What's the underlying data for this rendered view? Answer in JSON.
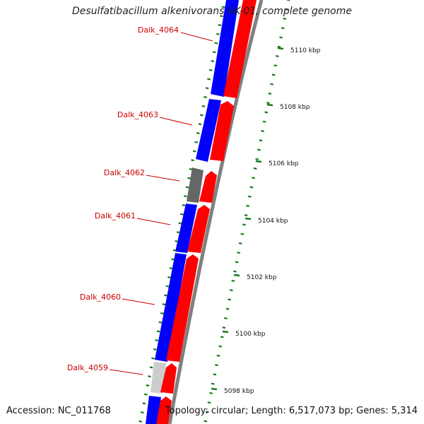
{
  "title": "Desulfatibacillum alkenivorans AK-01, complete genome",
  "accession": "Accession: NC_011768",
  "topology": "Topology: circular; Length: 6,517,073 bp; Genes: 5,314",
  "colors": {
    "forward_cds": "#ff0000",
    "reverse_cds": "#0000ff",
    "gray_feature": "#666666",
    "light_feature": "#cccccc",
    "backbone": "#808080",
    "ruler": "#1a7a1a",
    "gene_label": "#cc0000"
  },
  "ticks": [
    {
      "label": "5110 kbp"
    },
    {
      "label": "5108 kbp"
    },
    {
      "label": "5106 kbp"
    },
    {
      "label": "5104 kbp"
    },
    {
      "label": "5102 kbp"
    },
    {
      "label": "5100 kbp"
    },
    {
      "label": "5098 kbp"
    }
  ],
  "gene_labels": [
    {
      "name": "Dalk_4064"
    },
    {
      "name": "Dalk_4063"
    },
    {
      "name": "Dalk_4062"
    },
    {
      "name": "Dalk_4061"
    },
    {
      "name": "Dalk_4060"
    },
    {
      "name": "Dalk_4059"
    }
  ]
}
